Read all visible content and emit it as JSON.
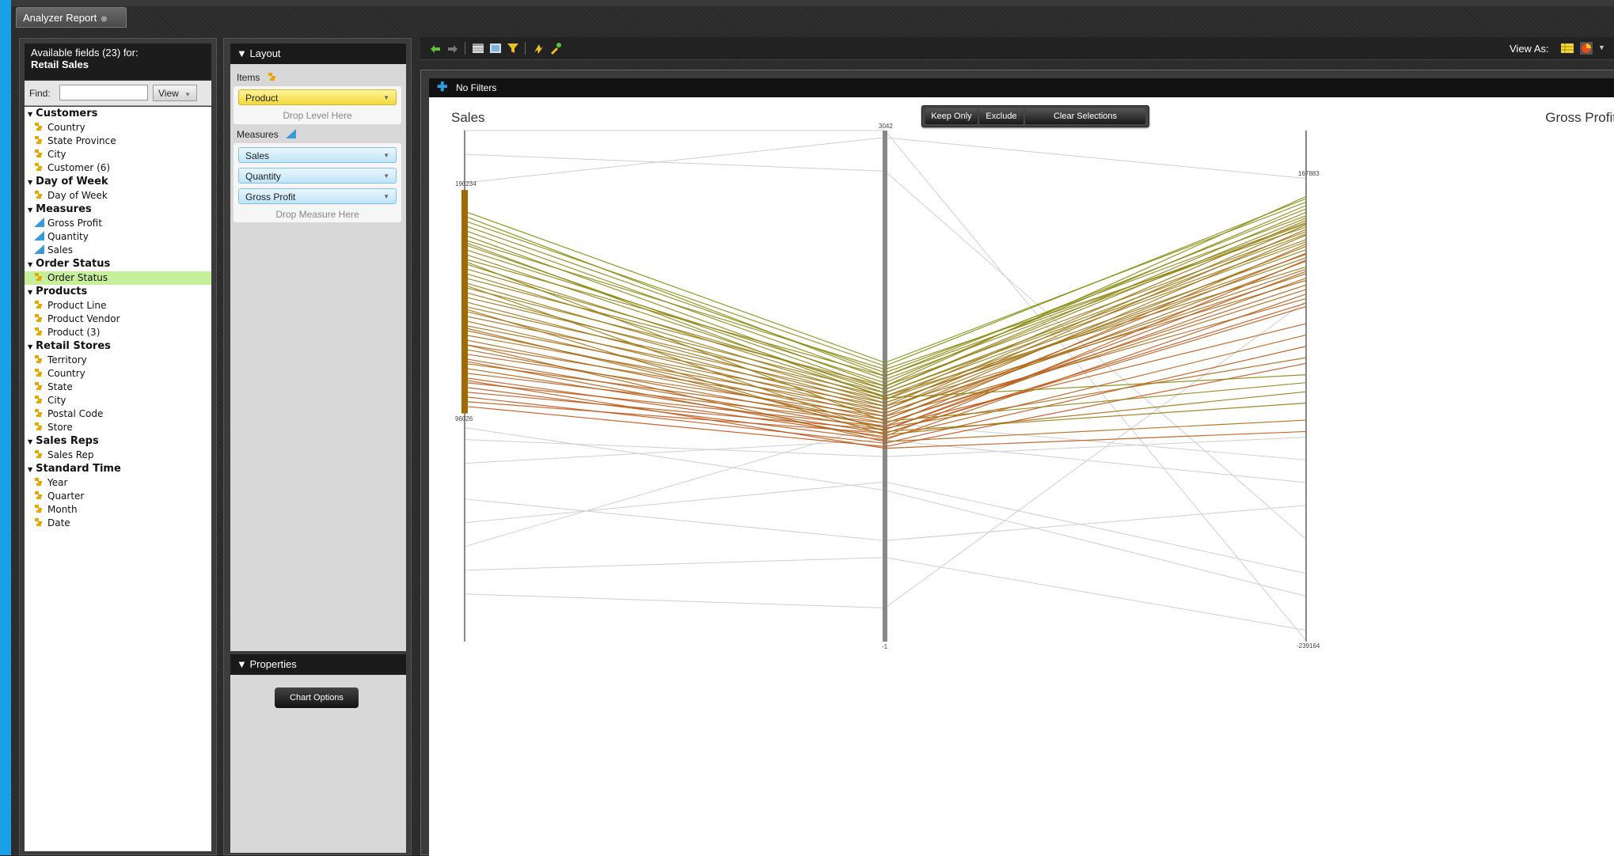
{
  "tab": {
    "title": "Analyzer Report"
  },
  "fields": {
    "header_line1": "Available fields (23) for:",
    "header_line2": "Retail Sales",
    "find_label": "Find:",
    "find_value": "",
    "view_button": "View",
    "groups": [
      {
        "name": "Customers",
        "items": [
          {
            "label": "Country",
            "type": "dim"
          },
          {
            "label": "State Province",
            "type": "dim"
          },
          {
            "label": "City",
            "type": "dim"
          },
          {
            "label": "Customer (6)",
            "type": "dim"
          }
        ]
      },
      {
        "name": "Day of Week",
        "items": [
          {
            "label": "Day of Week",
            "type": "dim"
          }
        ]
      },
      {
        "name": "Measures",
        "items": [
          {
            "label": "Gross Profit",
            "type": "measure"
          },
          {
            "label": "Quantity",
            "type": "measure"
          },
          {
            "label": "Sales",
            "type": "measure"
          }
        ]
      },
      {
        "name": "Order Status",
        "items": [
          {
            "label": "Order Status",
            "type": "dim",
            "selected": true
          }
        ]
      },
      {
        "name": "Products",
        "items": [
          {
            "label": "Product Line",
            "type": "dim"
          },
          {
            "label": "Product Vendor",
            "type": "dim"
          },
          {
            "label": "Product (3)",
            "type": "dim"
          }
        ]
      },
      {
        "name": "Retail Stores",
        "items": [
          {
            "label": "Territory",
            "type": "dim"
          },
          {
            "label": "Country",
            "type": "dim"
          },
          {
            "label": "State",
            "type": "dim"
          },
          {
            "label": "City",
            "type": "dim"
          },
          {
            "label": "Postal Code",
            "type": "dim"
          },
          {
            "label": "Store",
            "type": "dim"
          }
        ]
      },
      {
        "name": "Sales Reps",
        "items": [
          {
            "label": "Sales Rep",
            "type": "dim"
          }
        ]
      },
      {
        "name": "Standard Time",
        "items": [
          {
            "label": "Year",
            "type": "dim"
          },
          {
            "label": "Quarter",
            "type": "dim"
          },
          {
            "label": "Month",
            "type": "dim"
          },
          {
            "label": "Date",
            "type": "dim"
          }
        ]
      }
    ]
  },
  "layout": {
    "title": "Layout",
    "items_label": "Items",
    "items": [
      "Product"
    ],
    "drop_level": "Drop Level Here",
    "measures_label": "Measures",
    "measures": [
      "Sales",
      "Quantity",
      "Gross Profit"
    ],
    "drop_measure": "Drop Measure Here",
    "properties_title": "Properties",
    "chart_options": "Chart Options"
  },
  "toolbar": {
    "view_as": "View As:",
    "icons": [
      "undo-icon",
      "redo-icon",
      "table-layout-icon",
      "chart-layout-icon",
      "filter-icon",
      "auto-refresh-icon",
      "tools-icon"
    ],
    "view_icons": [
      "table-view-icon",
      "chart-view-icon"
    ]
  },
  "filters": {
    "text": "No Filters"
  },
  "selection": {
    "keep_only": "Keep Only",
    "exclude": "Exclude",
    "clear": "Clear Selections"
  },
  "colors": {
    "high": "#7a9a10",
    "low": "#c8501a",
    "context": "#cfcfcf",
    "brush": "#a06a00"
  },
  "chart_data": {
    "type": "parallel-coordinates",
    "title": "",
    "axes": [
      {
        "name": "Sales",
        "label": "Sales",
        "label_visible": true,
        "min": 0,
        "max": 215000,
        "brush": [
          96000,
          190000
        ],
        "brush_labels": [
          "190234",
          "96026"
        ]
      },
      {
        "name": "Quantity",
        "label": "Quantity",
        "label_visible": false,
        "min": -1,
        "max": 3042,
        "tick_labels": [
          "3042",
          "-1"
        ]
      },
      {
        "name": "Gross Profit",
        "label": "Gross Profit",
        "label_visible": true,
        "min": -240000,
        "max": 210000,
        "tick_labels": [
          "167883",
          "-239164"
        ]
      }
    ],
    "series": [
      {
        "values": [
          181000,
          1660,
          147000
        ]
      },
      {
        "values": [
          179000,
          1580,
          141000
        ]
      },
      {
        "values": [
          177000,
          1640,
          150000
        ]
      },
      {
        "values": [
          175000,
          1600,
          135000
        ]
      },
      {
        "values": [
          173000,
          1560,
          128000
        ]
      },
      {
        "values": [
          171000,
          1520,
          152000
        ]
      },
      {
        "values": [
          169000,
          1620,
          125000
        ]
      },
      {
        "values": [
          167000,
          1500,
          133000
        ]
      },
      {
        "values": [
          165000,
          1540,
          144000
        ]
      },
      {
        "values": [
          163000,
          1480,
          119000
        ]
      },
      {
        "values": [
          161000,
          1580,
          129000
        ]
      },
      {
        "values": [
          159000,
          1460,
          112000
        ]
      },
      {
        "values": [
          157000,
          1500,
          138000
        ]
      },
      {
        "values": [
          155000,
          1440,
          105000
        ]
      },
      {
        "values": [
          153000,
          1520,
          121000
        ]
      },
      {
        "values": [
          151000,
          1420,
          98000
        ]
      },
      {
        "values": [
          149000,
          1480,
          114000
        ]
      },
      {
        "values": [
          147000,
          1400,
          127000
        ]
      },
      {
        "values": [
          145000,
          1460,
          90000
        ]
      },
      {
        "values": [
          143000,
          1380,
          108000
        ]
      },
      {
        "values": [
          141000,
          1440,
          131000
        ]
      },
      {
        "values": [
          139000,
          1360,
          84000
        ]
      },
      {
        "values": [
          137000,
          1420,
          101000
        ]
      },
      {
        "values": [
          135000,
          1340,
          118000
        ]
      },
      {
        "values": [
          133000,
          1400,
          78000
        ]
      },
      {
        "values": [
          131000,
          1320,
          95000
        ]
      },
      {
        "values": [
          129000,
          1380,
          123000
        ]
      },
      {
        "values": [
          127000,
          1300,
          70000
        ]
      },
      {
        "values": [
          125000,
          1360,
          88000
        ]
      },
      {
        "values": [
          123000,
          1280,
          110000
        ]
      },
      {
        "values": [
          121000,
          1340,
          62000
        ]
      },
      {
        "values": [
          119000,
          1260,
          80000
        ]
      },
      {
        "values": [
          117000,
          1320,
          102000
        ]
      },
      {
        "values": [
          115000,
          1240,
          55000
        ]
      },
      {
        "values": [
          113000,
          1300,
          74000
        ]
      },
      {
        "values": [
          111000,
          1220,
          96000
        ]
      },
      {
        "values": [
          109000,
          1280,
          40000
        ]
      },
      {
        "values": [
          107000,
          1200,
          66000
        ]
      },
      {
        "values": [
          105000,
          1260,
          86000
        ]
      },
      {
        "values": [
          103000,
          1180,
          20000
        ]
      },
      {
        "values": [
          101000,
          1240,
          58000
        ]
      },
      {
        "values": [
          99000,
          1160,
          5000
        ]
      },
      {
        "values": [
          160000,
          1310,
          -12000
        ]
      },
      {
        "values": [
          150000,
          1250,
          -30000
        ]
      },
      {
        "values": [
          140000,
          1230,
          -20000
        ]
      },
      {
        "values": [
          125000,
          1190,
          -45000
        ]
      },
      {
        "values": [
          110000,
          1150,
          -55000
        ]
      },
      {
        "values": [
          168000,
          1450,
          -5000
        ]
      },
      {
        "values": [
          132000,
          1270,
          10000
        ]
      },
      {
        "values": [
          118000,
          1210,
          30000
        ]
      }
    ],
    "context_series": [
      {
        "values": [
          215000,
          3042,
          -239164
        ]
      },
      {
        "values": [
          193000,
          3000,
          167883
        ]
      },
      {
        "values": [
          205000,
          2800,
          -150000
        ]
      },
      {
        "values": [
          90000,
          900,
          -200000
        ]
      },
      {
        "values": [
          60000,
          600,
          -120000
        ]
      },
      {
        "values": [
          20000,
          200,
          60000
        ]
      },
      {
        "values": [
          40000,
          1300,
          -80000
        ]
      },
      {
        "values": [
          75000,
          1200,
          -100000
        ]
      },
      {
        "values": [
          30000,
          500,
          -230000
        ]
      },
      {
        "values": [
          85000,
          1100,
          -60000
        ]
      },
      {
        "values": [
          50000,
          950,
          -180000
        ]
      }
    ]
  }
}
